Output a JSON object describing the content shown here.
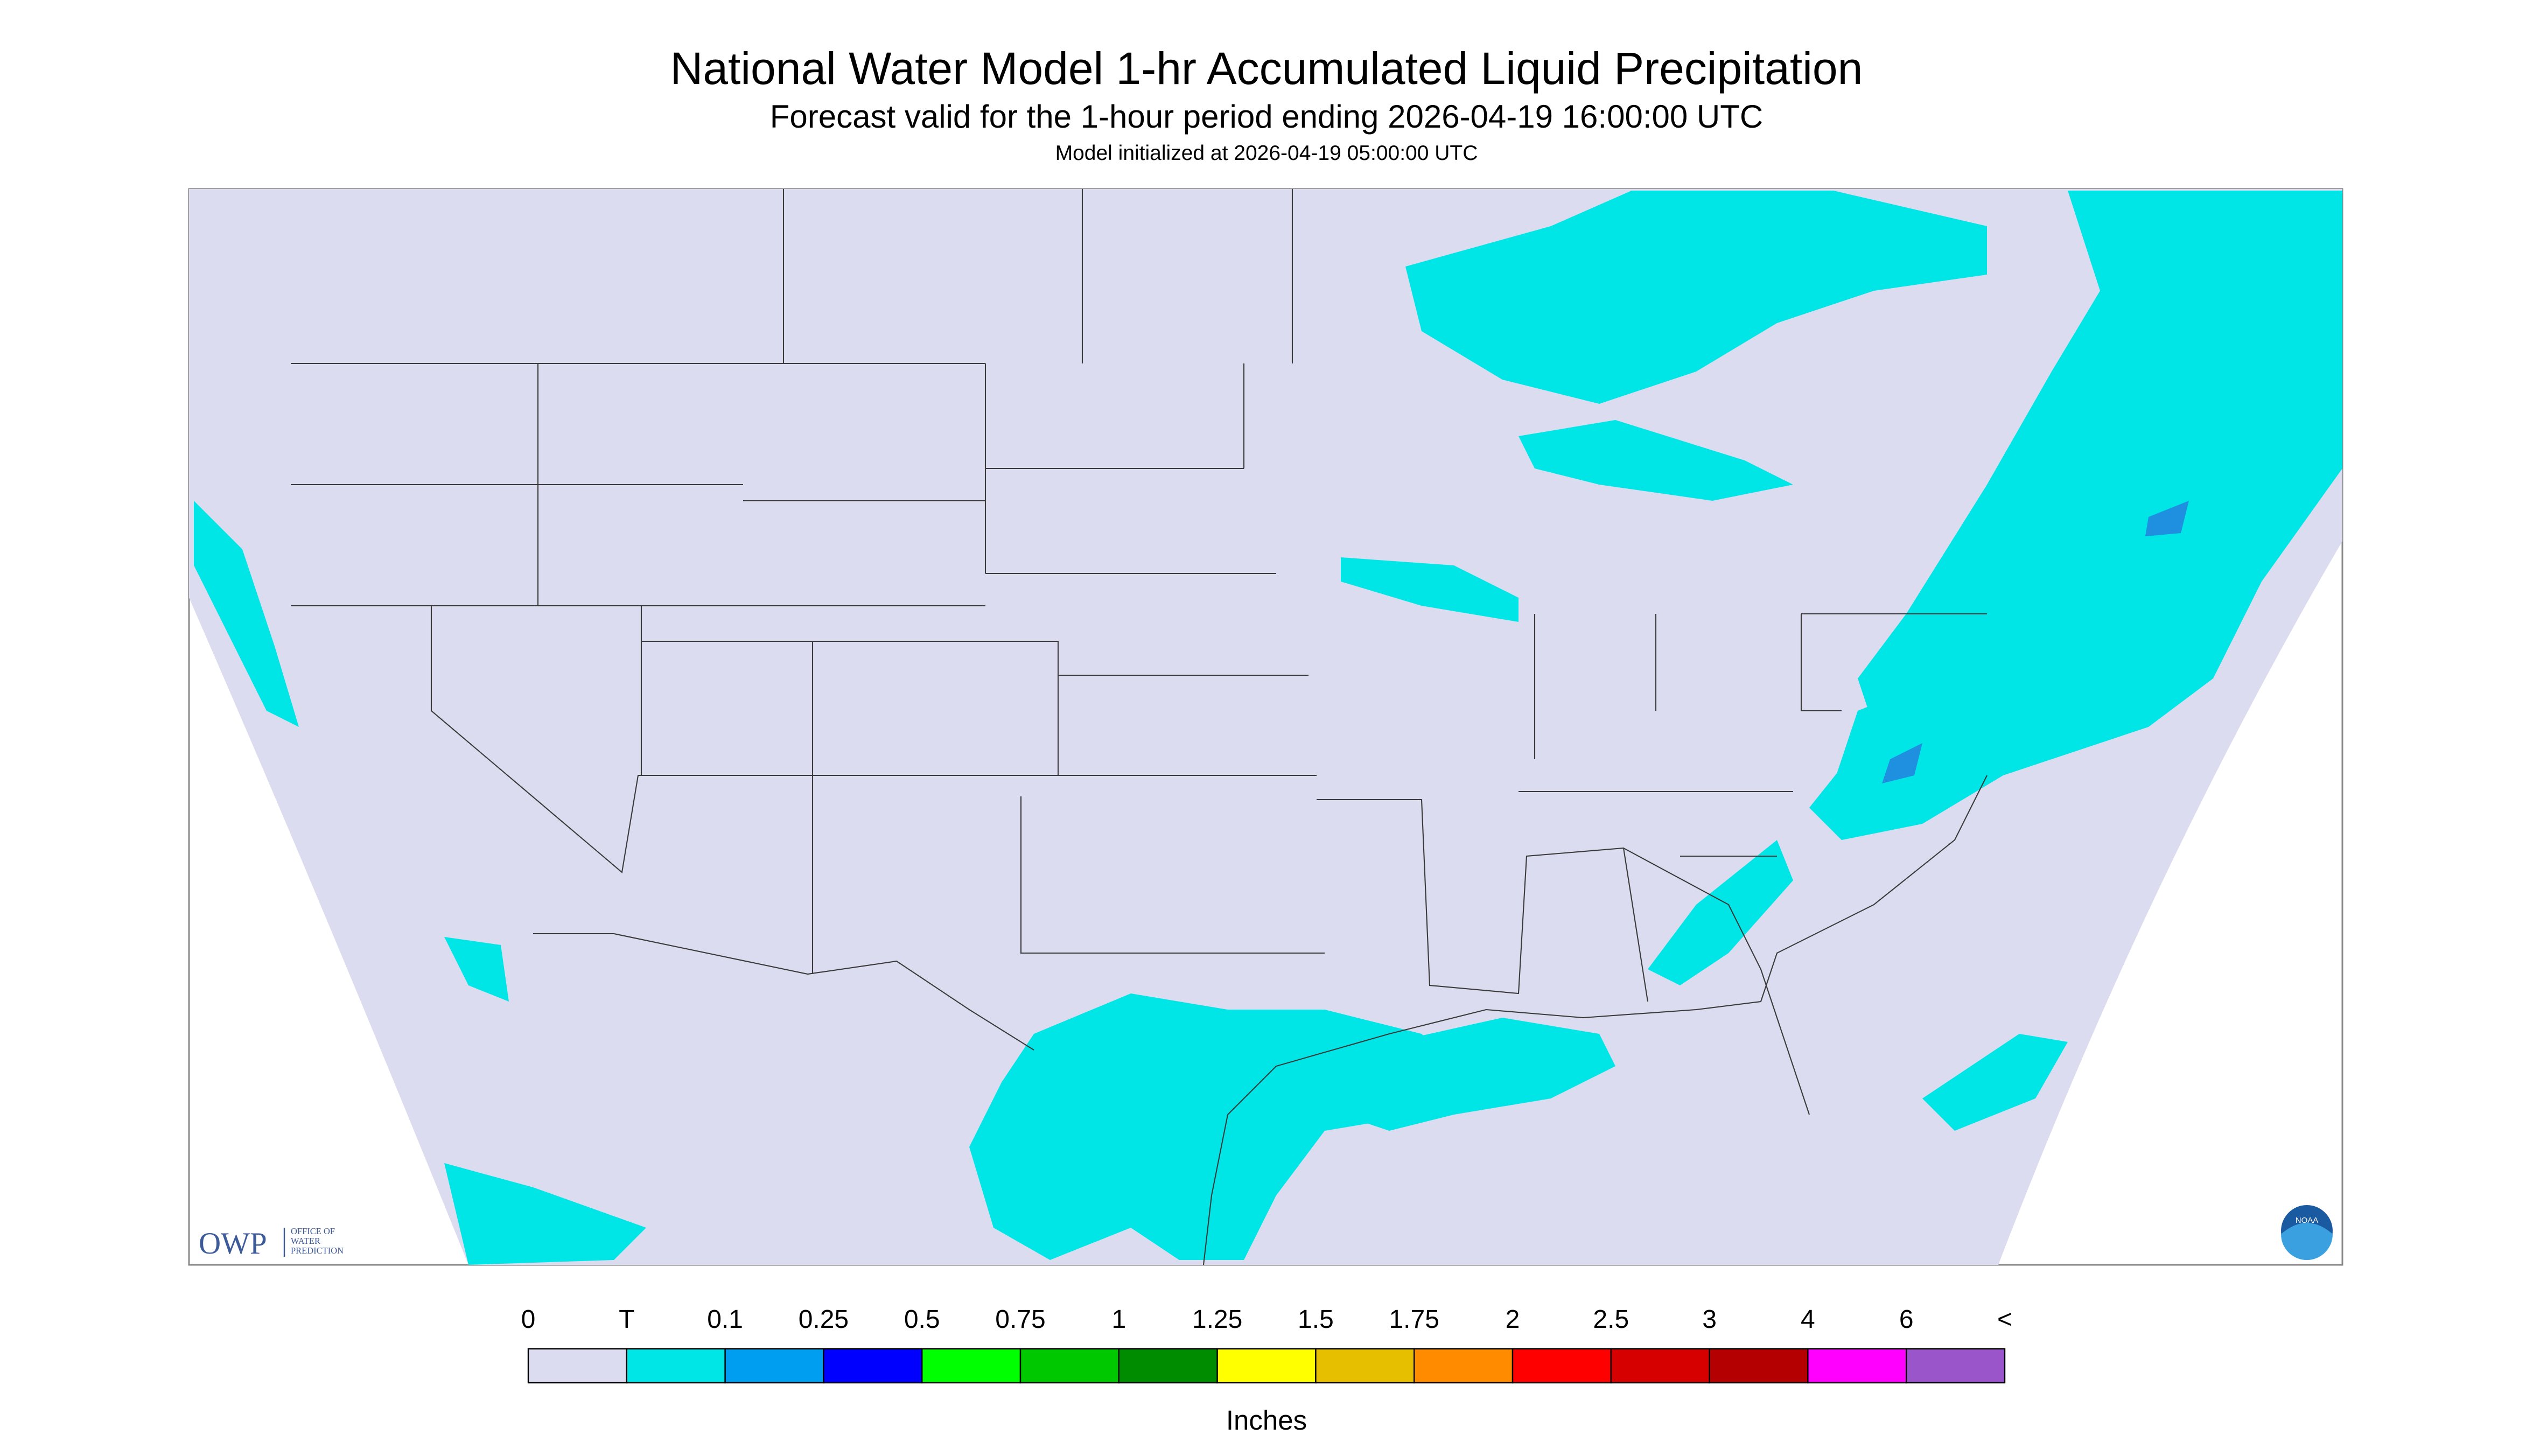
{
  "header": {
    "title": "National Water Model 1-hr Accumulated Liquid Precipitation",
    "subtitle": "Forecast valid for the 1-hour period ending 2026-04-19 16:00:00 UTC",
    "initialized": "Model initialized at 2026-04-19 05:00:00 UTC"
  },
  "logos": {
    "owp": "OWP",
    "owp_name": [
      "OFFICE OF",
      "WATER",
      "PREDICTION"
    ],
    "noaa": "NOAA"
  },
  "legend": {
    "labels": [
      "0",
      "T",
      "0.1",
      "0.25",
      "0.5",
      "0.75",
      "1",
      "1.25",
      "1.5",
      "1.75",
      "2",
      "2.5",
      "3",
      "4",
      "6",
      "<"
    ],
    "colors": [
      "#dcdcf0",
      "#00e6e6",
      "#009ef0",
      "#0000ff",
      "#00ff00",
      "#00c800",
      "#008c00",
      "#ffff00",
      "#e6bf00",
      "#ff8c00",
      "#ff0000",
      "#d70000",
      "#b40000",
      "#ff00ff",
      "#9955c9"
    ],
    "units": "Inches"
  }
}
